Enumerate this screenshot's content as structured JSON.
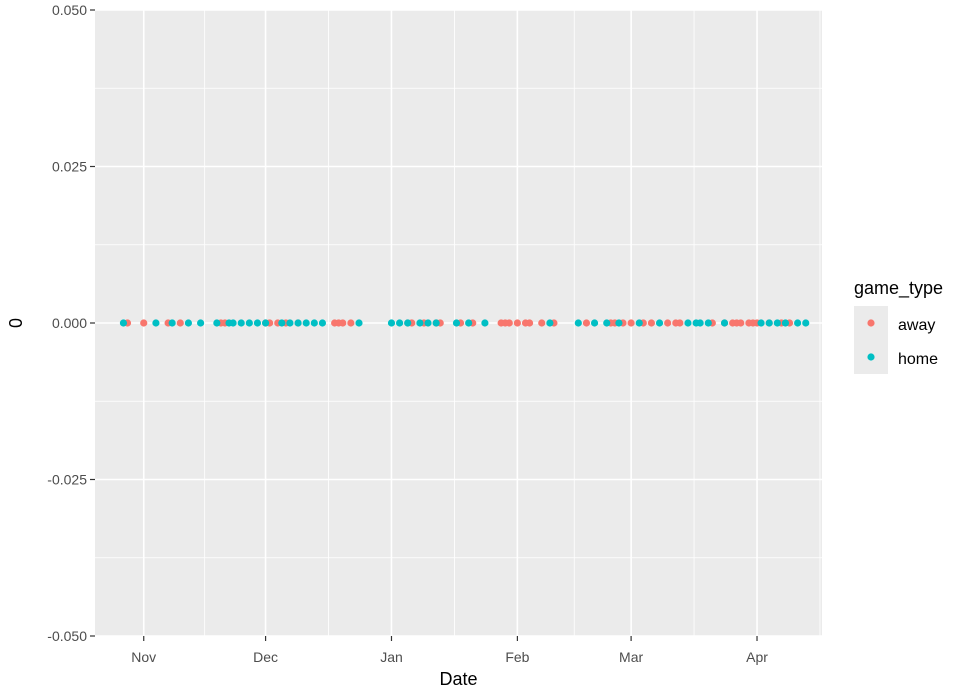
{
  "chart_data": {
    "type": "scatter",
    "xlabel": "Date",
    "ylabel": "0",
    "ylim": [
      -0.05,
      0.05
    ],
    "xlim": [
      "2017-10-20",
      "2018-04-17"
    ],
    "yticks": [
      "0.050",
      "0.025",
      "0.000",
      "-0.025",
      "-0.050"
    ],
    "yticks_values": [
      0.05,
      0.025,
      0,
      -0.025,
      -0.05
    ],
    "xticks": [
      {
        "label": "Nov",
        "date": "2017-11-01"
      },
      {
        "label": "Dec",
        "date": "2017-12-01"
      },
      {
        "label": "Jan",
        "date": "2018-01-01"
      },
      {
        "label": "Feb",
        "date": "2018-02-01"
      },
      {
        "label": "Mar",
        "date": "2018-03-01"
      },
      {
        "label": "Apr",
        "date": "2018-04-01"
      }
    ],
    "grid": true,
    "legend": {
      "title": "game_type",
      "position": "right"
    },
    "series": [
      {
        "name": "away",
        "color": "#F8766D",
        "x": [
          "2017-10-28",
          "2017-11-01",
          "2017-11-07",
          "2017-11-10",
          "2017-11-20",
          "2017-11-21",
          "2017-12-01",
          "2017-12-02",
          "2017-12-04",
          "2017-12-06",
          "2017-12-09",
          "2017-12-18",
          "2017-12-19",
          "2017-12-20",
          "2017-12-22",
          "2018-01-05",
          "2018-01-06",
          "2018-01-09",
          "2018-01-12",
          "2018-01-13",
          "2018-01-18",
          "2018-01-21",
          "2018-01-28",
          "2018-01-29",
          "2018-01-30",
          "2018-02-01",
          "2018-02-03",
          "2018-02-04",
          "2018-02-07",
          "2018-02-10",
          "2018-02-18",
          "2018-02-24",
          "2018-02-25",
          "2018-02-27",
          "2018-03-01",
          "2018-03-04",
          "2018-03-06",
          "2018-03-10",
          "2018-03-12",
          "2018-03-13",
          "2018-03-21",
          "2018-03-24",
          "2018-03-26",
          "2018-03-27",
          "2018-03-28",
          "2018-03-30",
          "2018-03-31",
          "2018-04-01",
          "2018-04-04",
          "2018-04-07",
          "2018-04-09"
        ],
        "y": [
          0,
          0,
          0,
          0,
          0,
          0,
          0,
          0,
          0,
          0,
          0,
          0,
          0,
          0,
          0,
          0,
          0,
          0,
          0,
          0,
          0,
          0,
          0,
          0,
          0,
          0,
          0,
          0,
          0,
          0,
          0,
          0,
          0,
          0,
          0,
          0,
          0,
          0,
          0,
          0,
          0,
          0,
          0,
          0,
          0,
          0,
          0,
          0,
          0,
          0,
          0
        ]
      },
      {
        "name": "home",
        "color": "#00BFC4",
        "x": [
          "2017-10-27",
          "2017-11-04",
          "2017-11-08",
          "2017-11-12",
          "2017-11-15",
          "2017-11-19",
          "2017-11-22",
          "2017-11-23",
          "2017-11-25",
          "2017-11-27",
          "2017-11-29",
          "2017-12-01",
          "2017-12-05",
          "2017-12-07",
          "2017-12-09",
          "2017-12-11",
          "2017-12-13",
          "2017-12-15",
          "2017-12-24",
          "2018-01-01",
          "2018-01-03",
          "2018-01-05",
          "2018-01-08",
          "2018-01-10",
          "2018-01-12",
          "2018-01-17",
          "2018-01-20",
          "2018-01-24",
          "2018-02-09",
          "2018-02-16",
          "2018-02-20",
          "2018-02-23",
          "2018-02-26",
          "2018-03-03",
          "2018-03-08",
          "2018-03-15",
          "2018-03-17",
          "2018-03-18",
          "2018-03-20",
          "2018-03-24",
          "2018-04-02",
          "2018-04-04",
          "2018-04-06",
          "2018-04-08",
          "2018-04-11",
          "2018-04-13"
        ],
        "y": [
          0,
          0,
          0,
          0,
          0,
          0,
          0,
          0,
          0,
          0,
          0,
          0,
          0,
          0,
          0,
          0,
          0,
          0,
          0,
          0,
          0,
          0,
          0,
          0,
          0,
          0,
          0,
          0,
          0,
          0,
          0,
          0,
          0,
          0,
          0,
          0,
          0,
          0,
          0,
          0,
          0,
          0,
          0,
          0,
          0,
          0
        ]
      }
    ]
  }
}
